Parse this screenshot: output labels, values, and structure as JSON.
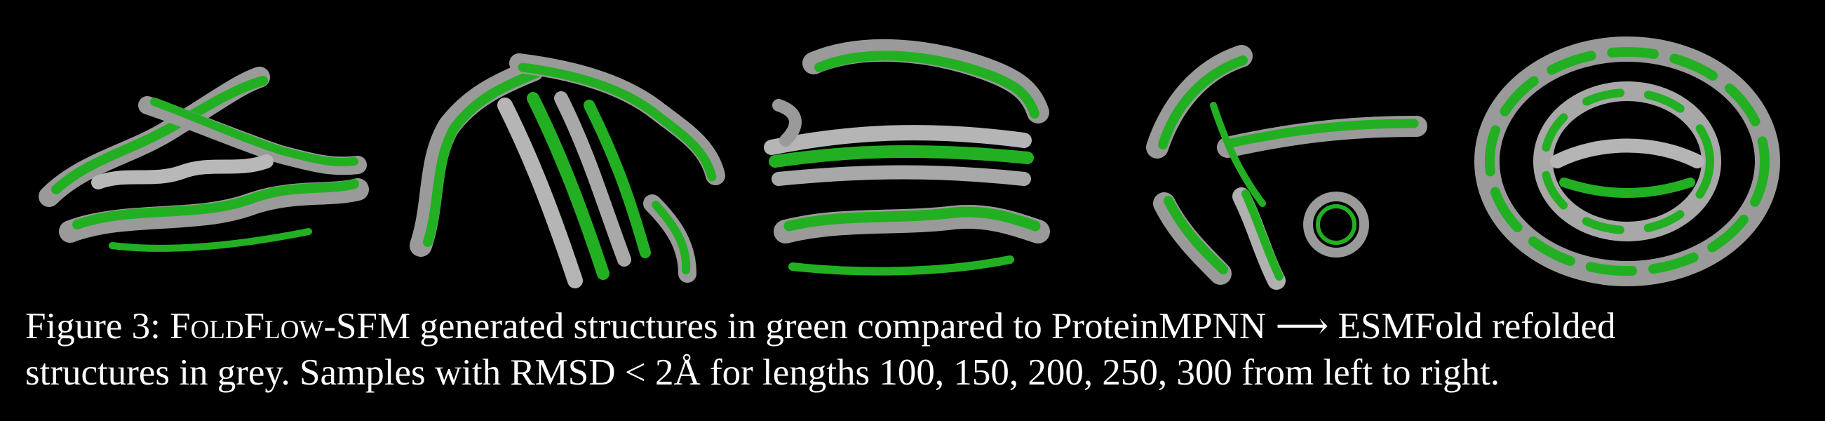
{
  "figure": {
    "label": "Figure 3:",
    "method_name": "FoldFlow-SFM",
    "line1_rest": " generated structures in green compared to ProteinMPNN ⟶ ESMFold refolded",
    "line2": "structures in grey. Samples with RMSD < 2Å for lengths 100, 150, 200, 250, 300 from left to right."
  },
  "colors": {
    "background": "#000000",
    "generated": "#22b022",
    "refolded": "#9a9a9a",
    "caption_text": "#ffffff"
  },
  "panels": [
    {
      "length": 100
    },
    {
      "length": 150
    },
    {
      "length": 200
    },
    {
      "length": 250
    },
    {
      "length": 300
    }
  ]
}
